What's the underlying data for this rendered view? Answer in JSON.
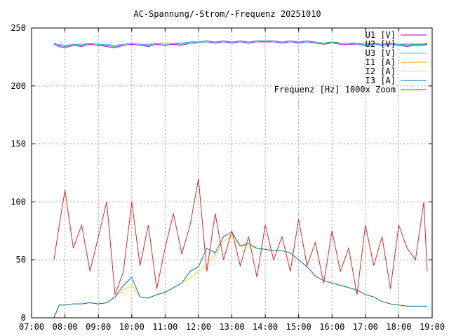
{
  "chart_data": {
    "type": "line",
    "title": "AC-Spannung/-Strom/-Frequenz 20251010",
    "xlabel": "",
    "ylabel": "",
    "xlim": [
      7.0,
      19.0
    ],
    "ylim": [
      0,
      250
    ],
    "x_ticks": [
      "07:00",
      "08:00",
      "09:00",
      "10:00",
      "11:00",
      "12:00",
      "13:00",
      "14:00",
      "15:00",
      "16:00",
      "17:00",
      "18:00",
      "19:00"
    ],
    "y_ticks": [
      "0",
      "50",
      "100",
      "150",
      "200",
      "250"
    ],
    "legend_position": "top-right",
    "grid": true,
    "x": [
      7.67,
      7.83,
      8.0,
      8.25,
      8.5,
      8.75,
      9.0,
      9.25,
      9.5,
      9.75,
      10.0,
      10.25,
      10.5,
      10.75,
      11.0,
      11.25,
      11.5,
      11.75,
      12.0,
      12.25,
      12.5,
      12.75,
      13.0,
      13.25,
      13.5,
      13.75,
      14.0,
      14.25,
      14.5,
      14.75,
      15.0,
      15.25,
      15.5,
      15.75,
      16.0,
      16.25,
      16.5,
      16.75,
      17.0,
      17.25,
      17.5,
      17.75,
      18.0,
      18.25,
      18.5,
      18.75,
      18.85
    ],
    "series": [
      {
        "name": "U1 [V]",
        "color": "#9400d3",
        "values": [
          236,
          234,
          233,
          235,
          234,
          236,
          235,
          234,
          233,
          235,
          236,
          235,
          234,
          236,
          235,
          236,
          235,
          237,
          237,
          238,
          237,
          238,
          237,
          238,
          237,
          238,
          238,
          238,
          237,
          238,
          237,
          238,
          237,
          236,
          237,
          236,
          236,
          236,
          235,
          236,
          235,
          236,
          235,
          234,
          235,
          235,
          236
        ]
      },
      {
        "name": "U2 [V]",
        "color": "#009e73",
        "values": [
          237,
          235,
          234,
          236,
          235,
          237,
          236,
          235,
          234,
          236,
          237,
          236,
          235,
          237,
          236,
          237,
          236,
          238,
          238,
          239,
          238,
          239,
          238,
          239,
          238,
          239,
          239,
          239,
          238,
          239,
          238,
          239,
          238,
          237,
          238,
          237,
          237,
          237,
          236,
          237,
          236,
          237,
          236,
          235,
          236,
          236,
          237
        ]
      },
      {
        "name": "U3 [V]",
        "color": "#56b4e9",
        "values": [
          236,
          236,
          235,
          236,
          236,
          237,
          236,
          236,
          235,
          236,
          237,
          236,
          236,
          237,
          236,
          237,
          237,
          238,
          237,
          238,
          238,
          238,
          238,
          238,
          238,
          238,
          239,
          238,
          238,
          238,
          238,
          238,
          238,
          237,
          237,
          237,
          237,
          236,
          236,
          236,
          236,
          236,
          236,
          235,
          236,
          236,
          236
        ]
      },
      {
        "name": "I1 [A]",
        "color": "#e69f00",
        "values": [
          0,
          11,
          11,
          12,
          12,
          13,
          12,
          13,
          18,
          24,
          28,
          18,
          17,
          20,
          22,
          26,
          30,
          34,
          40,
          46,
          54,
          66,
          70,
          62,
          62,
          60,
          59,
          58,
          58,
          56,
          50,
          44,
          36,
          32,
          30,
          28,
          26,
          24,
          20,
          18,
          14,
          12,
          11,
          10,
          10,
          10,
          10
        ]
      },
      {
        "name": "I2 [A]",
        "color": "#f0e442",
        "values": [
          0,
          11,
          11,
          12,
          12,
          13,
          12,
          13,
          18,
          24,
          28,
          18,
          17,
          20,
          22,
          26,
          30,
          34,
          40,
          46,
          54,
          66,
          70,
          62,
          62,
          60,
          59,
          58,
          58,
          56,
          50,
          44,
          36,
          32,
          30,
          28,
          26,
          24,
          20,
          18,
          14,
          12,
          11,
          10,
          10,
          10,
          10
        ]
      },
      {
        "name": "I3 [A]",
        "color": "#0072b2",
        "values": [
          0,
          11,
          11,
          12,
          12,
          13,
          12,
          13,
          18,
          28,
          35,
          18,
          17,
          20,
          22,
          26,
          30,
          40,
          44,
          60,
          56,
          70,
          74,
          62,
          64,
          60,
          59,
          58,
          58,
          56,
          50,
          44,
          36,
          32,
          30,
          28,
          26,
          24,
          20,
          18,
          14,
          12,
          11,
          10,
          10,
          10,
          10
        ]
      },
      {
        "name": "Frequenz [Hz] 1000x Zoom",
        "color": "#d62728",
        "values": [
          50,
          80,
          110,
          60,
          80,
          40,
          70,
          100,
          20,
          40,
          100,
          45,
          80,
          25,
          60,
          90,
          55,
          80,
          120,
          40,
          90,
          50,
          75,
          45,
          70,
          35,
          80,
          50,
          70,
          40,
          85,
          45,
          65,
          30,
          75,
          40,
          60,
          20,
          80,
          45,
          70,
          25,
          80,
          60,
          50,
          100,
          40
        ]
      }
    ]
  }
}
